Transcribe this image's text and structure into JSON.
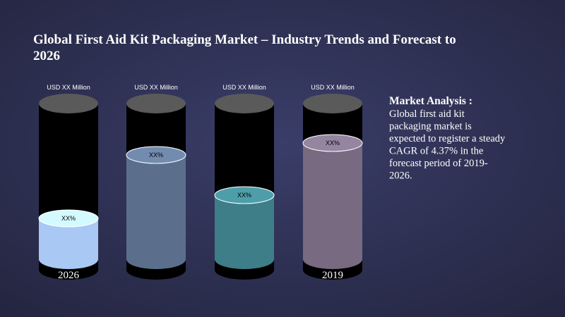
{
  "header": {
    "title_lines": [
      "Global First Aid Kit Packaging Market – Industry Trends and Forecast to",
      "2026"
    ]
  },
  "columns": [
    {
      "header": "USD XX Million",
      "value_label": "XX%",
      "year": "2026"
    },
    {
      "header": "USD XX Million",
      "value_label": "XX%"
    },
    {
      "header": "USD XX Million",
      "value_label": "XX%"
    },
    {
      "header": "USD XX Million",
      "value_label": "XX%",
      "year": "2019"
    }
  ],
  "analysis": {
    "heading": "Market Analysis :",
    "lines": [
      "Global first aid kit",
      "packaging  market is",
      "expected to register  a steady",
      "CAGR of 4.37% in the",
      "forecast period of 2019-",
      "2026."
    ]
  }
}
